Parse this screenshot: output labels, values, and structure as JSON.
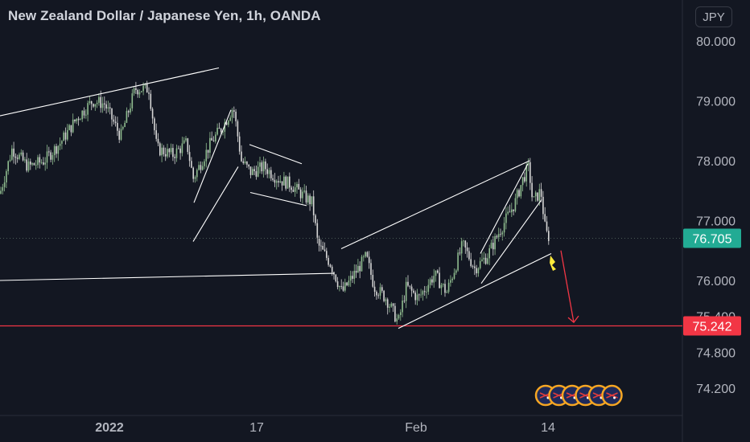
{
  "header": {
    "title": "New Zealand Dollar / Japanese Yen, 1h, OANDA",
    "currency": "JPY"
  },
  "colors": {
    "background": "#131722",
    "up_candle": "#8fbc8f",
    "down_candle": "#d7d7d7",
    "trendline": "#ffffff",
    "support_line": "#f23645",
    "last_price_badge": "#22ab94",
    "support_badge": "#f23645",
    "arrow": "#f23645",
    "marker": "#ffeb3b",
    "axis_text": "#b2b5be"
  },
  "chart_data": {
    "type": "candlestick",
    "title": "New Zealand Dollar / Japanese Yen, 1h, OANDA",
    "y_axis": {
      "ticks": [
        "80.000",
        "79.000",
        "78.000",
        "77.000",
        "76.000",
        "75.400",
        "74.800",
        "74.200"
      ],
      "range": [
        73.9,
        80.5
      ]
    },
    "x_axis": {
      "ticks": [
        "2022",
        "17",
        "Feb",
        "14"
      ]
    },
    "last_price": {
      "value": 76.705,
      "label": "76.705"
    },
    "support_level": {
      "value": 75.242,
      "label": "75.242"
    },
    "price_path": [
      [
        0,
        77.45
      ],
      [
        15,
        78.2
      ],
      [
        35,
        77.9
      ],
      [
        55,
        78.0
      ],
      [
        75,
        78.3
      ],
      [
        95,
        78.7
      ],
      [
        115,
        79.0
      ],
      [
        130,
        78.95
      ],
      [
        150,
        78.4
      ],
      [
        168,
        79.2
      ],
      [
        185,
        79.2
      ],
      [
        195,
        78.2
      ],
      [
        215,
        78.1
      ],
      [
        232,
        78.3
      ],
      [
        240,
        77.7
      ],
      [
        262,
        78.3
      ],
      [
        278,
        78.6
      ],
      [
        290,
        78.9
      ],
      [
        300,
        78.0
      ],
      [
        312,
        77.8
      ],
      [
        328,
        77.9
      ],
      [
        345,
        77.7
      ],
      [
        362,
        77.6
      ],
      [
        378,
        77.4
      ],
      [
        388,
        77.3
      ],
      [
        395,
        76.6
      ],
      [
        410,
        76.3
      ],
      [
        425,
        75.8
      ],
      [
        440,
        76.1
      ],
      [
        455,
        76.4
      ],
      [
        465,
        75.9
      ],
      [
        480,
        75.7
      ],
      [
        495,
        75.3
      ],
      [
        505,
        75.9
      ],
      [
        520,
        75.7
      ],
      [
        540,
        76.1
      ],
      [
        555,
        75.8
      ],
      [
        575,
        76.6
      ],
      [
        590,
        76.2
      ],
      [
        605,
        76.4
      ],
      [
        620,
        76.8
      ],
      [
        640,
        77.3
      ],
      [
        650,
        77.7
      ],
      [
        657,
        77.9
      ],
      [
        662,
        77.3
      ],
      [
        672,
        77.5
      ],
      [
        678,
        76.8
      ],
      [
        684,
        76.7
      ]
    ],
    "trendlines": [
      {
        "from": [
          0,
          78.75
        ],
        "to": [
          272,
          79.55
        ]
      },
      {
        "from": [
          0,
          76.0
        ],
        "to": [
          415,
          76.12
        ]
      },
      {
        "from": [
          241,
          77.3
        ],
        "to": [
          287,
          78.85
        ]
      },
      {
        "from": [
          240,
          76.65
        ],
        "to": [
          296,
          77.9
        ]
      },
      {
        "from": [
          310,
          78.27
        ],
        "to": [
          375,
          77.95
        ]
      },
      {
        "from": [
          311,
          77.47
        ],
        "to": [
          381,
          77.25
        ]
      },
      {
        "from": [
          424,
          76.53
        ],
        "to": [
          658,
          78.0
        ]
      },
      {
        "from": [
          495,
          75.2
        ],
        "to": [
          685,
          76.45
        ]
      },
      {
        "from": [
          597,
          76.45
        ],
        "to": [
          656,
          77.95
        ]
      },
      {
        "from": [
          598,
          75.95
        ],
        "to": [
          673,
          77.35
        ]
      }
    ],
    "forecast_arrow": {
      "from": [
        697,
        76.5
      ],
      "to": [
        713,
        75.3
      ]
    },
    "grid": false,
    "legend": "none"
  },
  "events": {
    "count": 6
  }
}
